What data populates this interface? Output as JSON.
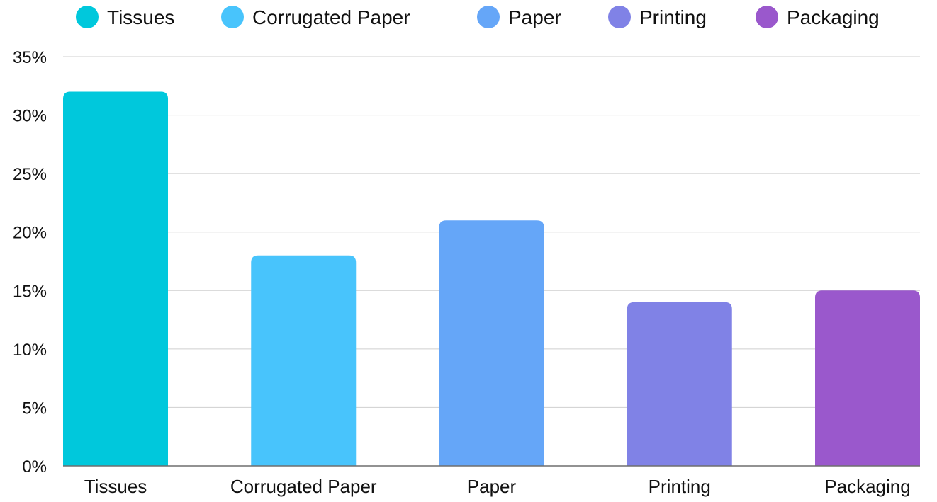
{
  "chart_data": {
    "type": "bar",
    "categories": [
      "Tissues",
      "Corrugated Paper",
      "Paper",
      "Printing",
      "Packaging"
    ],
    "values": [
      32,
      18,
      21,
      14,
      15
    ],
    "colors": [
      "#00c8dc",
      "#48c4fc",
      "#65a6f8",
      "#8082e6",
      "#9a58cc"
    ],
    "y_ticks": [
      "0%",
      "5%",
      "10%",
      "15%",
      "20%",
      "25%",
      "30%",
      "35%"
    ],
    "ylim": [
      0,
      35
    ],
    "y_step": 5,
    "grid": true,
    "legend_position": "top",
    "legend": [
      "Tissues",
      "Corrugated Paper",
      "Paper",
      "Printing",
      "Packaging"
    ]
  }
}
